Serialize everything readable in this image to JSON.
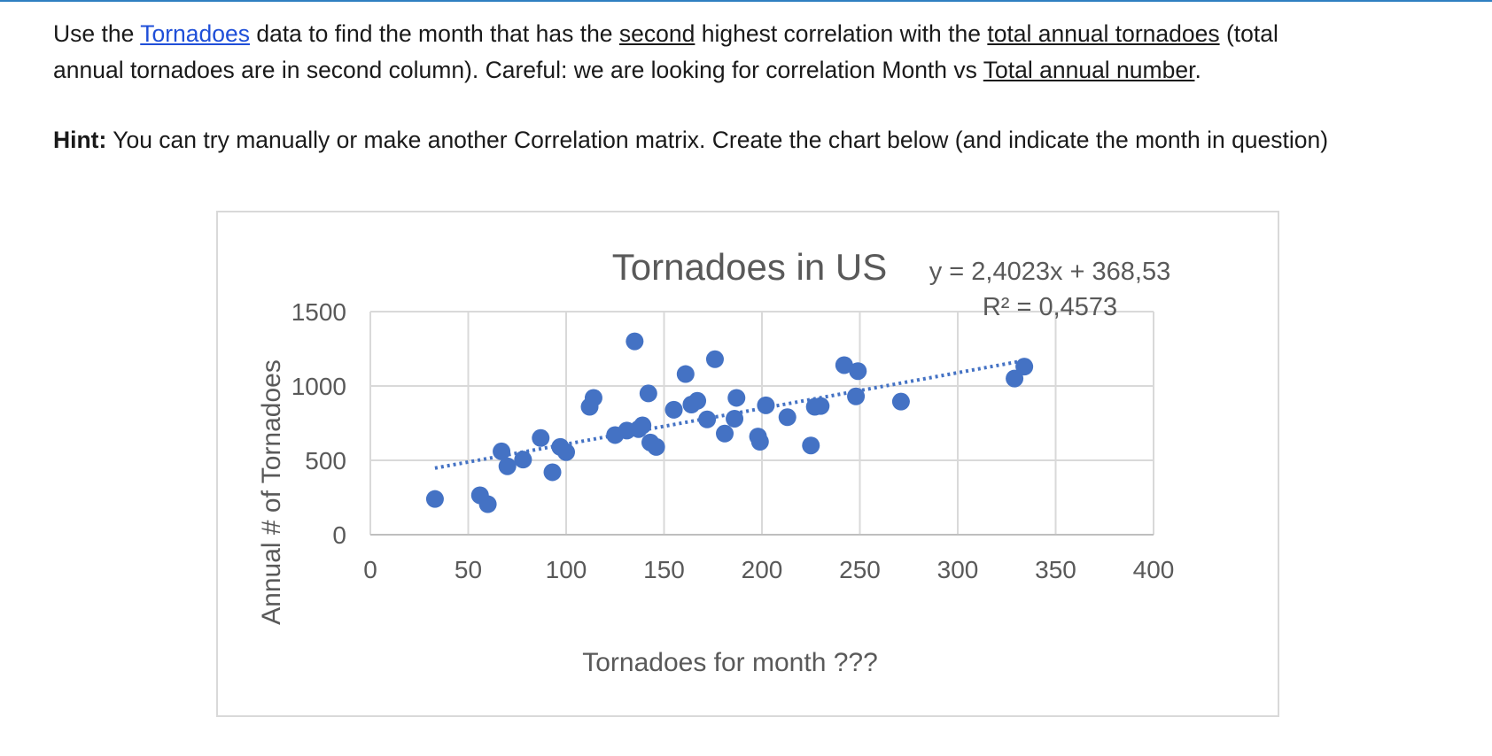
{
  "question": {
    "line1_pre": "Use the ",
    "link": "Tornadoes",
    "line1_mid": " data to find the month that has the ",
    "second": "second",
    "line1_mid2": " highest correlation with the ",
    "total_annual": "total annual tornadoes",
    "line1_post": " (total",
    "line2_pre": "annual tornadoes are in second column). Careful: we are looking for correlation Month vs ",
    "total_number": "Total annual number",
    "line2_post": "."
  },
  "hint": {
    "label": "Hint:",
    "text": " You can try manually or make another Correlation matrix. Create the chart below (and indicate the month in question)"
  },
  "colors": {
    "marker": "#4472c4",
    "trend": "#4472c4",
    "grid": "#d9d9d9",
    "text": "#595959",
    "link": "#1f4fd8"
  },
  "chart_data": {
    "type": "scatter",
    "title": "Tornadoes in US",
    "xlabel": "Tornadoes for month ???",
    "ylabel": "Annual # of Tornadoes",
    "xlim": [
      0,
      400
    ],
    "ylim": [
      0,
      1500
    ],
    "x_ticks": [
      "0",
      "50",
      "100",
      "150",
      "200",
      "250",
      "300",
      "350",
      "400"
    ],
    "y_ticks": [
      "0",
      "500",
      "1000",
      "1500"
    ],
    "grid": true,
    "trendline": {
      "slope": 2.4023,
      "intercept": 368.53,
      "x_range": [
        33,
        335
      ],
      "style": "dotted"
    },
    "equation": "y = 2,4023x + 368,53",
    "r_squared": "R² = 0,4573",
    "points": [
      {
        "x": 33,
        "y": 240
      },
      {
        "x": 56,
        "y": 265
      },
      {
        "x": 60,
        "y": 205
      },
      {
        "x": 67,
        "y": 560
      },
      {
        "x": 70,
        "y": 460
      },
      {
        "x": 78,
        "y": 505
      },
      {
        "x": 87,
        "y": 650
      },
      {
        "x": 93,
        "y": 420
      },
      {
        "x": 97,
        "y": 590
      },
      {
        "x": 100,
        "y": 555
      },
      {
        "x": 112,
        "y": 860
      },
      {
        "x": 114,
        "y": 920
      },
      {
        "x": 125,
        "y": 670
      },
      {
        "x": 131,
        "y": 700
      },
      {
        "x": 135,
        "y": 1300
      },
      {
        "x": 137,
        "y": 710
      },
      {
        "x": 139,
        "y": 735
      },
      {
        "x": 142,
        "y": 950
      },
      {
        "x": 143,
        "y": 620
      },
      {
        "x": 146,
        "y": 590
      },
      {
        "x": 155,
        "y": 840
      },
      {
        "x": 161,
        "y": 1080
      },
      {
        "x": 164,
        "y": 875
      },
      {
        "x": 167,
        "y": 900
      },
      {
        "x": 172,
        "y": 775
      },
      {
        "x": 176,
        "y": 1180
      },
      {
        "x": 181,
        "y": 680
      },
      {
        "x": 186,
        "y": 780
      },
      {
        "x": 187,
        "y": 920
      },
      {
        "x": 198,
        "y": 660
      },
      {
        "x": 199,
        "y": 625
      },
      {
        "x": 202,
        "y": 870
      },
      {
        "x": 213,
        "y": 790
      },
      {
        "x": 225,
        "y": 600
      },
      {
        "x": 227,
        "y": 860
      },
      {
        "x": 230,
        "y": 865
      },
      {
        "x": 242,
        "y": 1140
      },
      {
        "x": 248,
        "y": 930
      },
      {
        "x": 249,
        "y": 1100
      },
      {
        "x": 271,
        "y": 895
      },
      {
        "x": 329,
        "y": 1050
      },
      {
        "x": 334,
        "y": 1130
      }
    ]
  }
}
